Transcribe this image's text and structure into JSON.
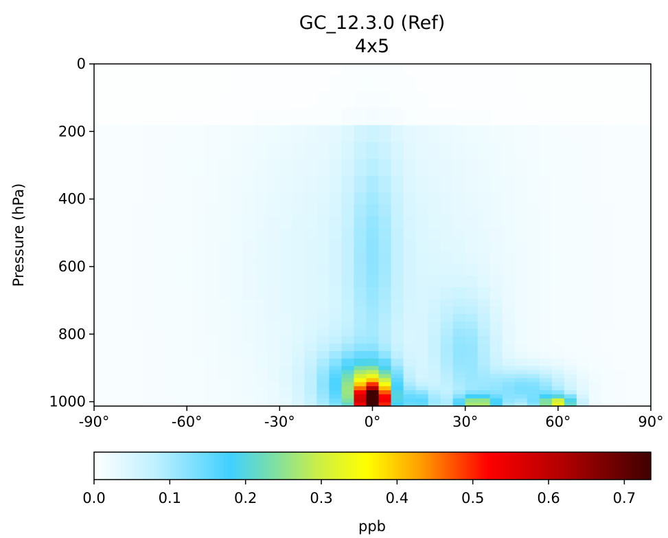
{
  "chart_data": {
    "type": "heatmap",
    "title": "GC_12.3.0 (Ref)",
    "subtitle": "4x5",
    "xlabel": "",
    "ylabel": "Pressure (hPa)",
    "xlim": [
      -90,
      90
    ],
    "ylim": [
      1013,
      0
    ],
    "x_ticks": [
      -90,
      -60,
      -30,
      0,
      30,
      60,
      90
    ],
    "x_tick_labels": [
      "-90°",
      "-60°",
      "-30°",
      "0°",
      "30°",
      "60°",
      "90°"
    ],
    "y_ticks": [
      0,
      200,
      400,
      600,
      800,
      1000
    ],
    "y_tick_labels": [
      "0",
      "200",
      "400",
      "600",
      "800",
      "1000"
    ],
    "colorbar": {
      "label": "ppb",
      "range": [
        0.0,
        0.735
      ],
      "ticks": [
        0.0,
        0.1,
        0.2,
        0.3,
        0.4,
        0.5,
        0.6,
        0.7
      ],
      "tick_labels": [
        "0.0",
        "0.1",
        "0.2",
        "0.3",
        "0.4",
        "0.5",
        "0.6",
        "0.7"
      ],
      "colormap": [
        {
          "v": 0.0,
          "color": "#ffffff"
        },
        {
          "v": 0.08,
          "color": "#bff0ff"
        },
        {
          "v": 0.18,
          "color": "#40d0ff"
        },
        {
          "v": 0.24,
          "color": "#80e0a0"
        },
        {
          "v": 0.3,
          "color": "#d0f040"
        },
        {
          "v": 0.36,
          "color": "#ffff00"
        },
        {
          "v": 0.43,
          "color": "#ffa000"
        },
        {
          "v": 0.52,
          "color": "#ff0000"
        },
        {
          "v": 0.62,
          "color": "#b00000"
        },
        {
          "v": 0.735,
          "color": "#400000"
        }
      ]
    },
    "grid": false,
    "field_model": {
      "description_units": "ppb",
      "background": 0.008,
      "features": [
        {
          "lat": 0,
          "p": 1000,
          "amp": 0.66,
          "lat_width": 5,
          "p_width": 45
        },
        {
          "lat": 0,
          "p": 950,
          "amp": 0.22,
          "lat_width": 9,
          "p_width": 70
        },
        {
          "lat": 60,
          "p": 1005,
          "amp": 0.28,
          "lat_width": 6,
          "p_width": 25
        },
        {
          "lat": 34,
          "p": 1005,
          "amp": 0.22,
          "lat_width": 7,
          "p_width": 25
        },
        {
          "lat": 50,
          "p": 960,
          "amp": 0.12,
          "lat_width": 14,
          "p_width": 60
        },
        {
          "lat": 30,
          "p": 850,
          "amp": 0.09,
          "lat_width": 10,
          "p_width": 160
        },
        {
          "lat": 0,
          "p": 550,
          "amp": 0.07,
          "lat_width": 8,
          "p_width": 380
        },
        {
          "lat": -10,
          "p": 950,
          "amp": 0.1,
          "lat_width": 12,
          "p_width": 120
        },
        {
          "lat": 15,
          "p": 1000,
          "amp": 0.12,
          "lat_width": 6,
          "p_width": 40
        },
        {
          "lat": 0,
          "p": 600,
          "amp": 0.03,
          "lat_width": 40,
          "p_width": 420
        }
      ]
    }
  }
}
